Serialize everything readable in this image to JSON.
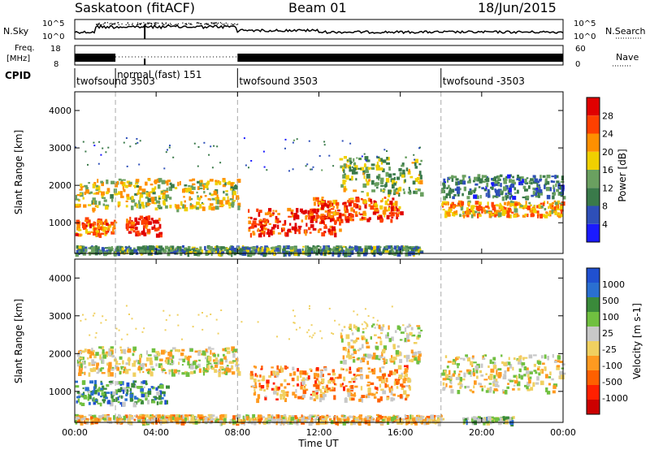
{
  "header": {
    "station": "Saskatoon (fitACF)",
    "beam": "Beam 01",
    "date": "18/Jun/2015"
  },
  "top_panels": {
    "nsky_label": "N.Sky",
    "nsky_ticks": [
      "10^5",
      "10^0"
    ],
    "nsearch_label": "N.Search",
    "nsearch_ticks": [
      "10^5",
      "10^0"
    ],
    "freq_label_1": "Freq.",
    "freq_label_2": "[MHz]",
    "freq_ticks": [
      "18",
      "8"
    ],
    "nave_label": "Nave",
    "nave_ticks": [
      "60",
      "0"
    ],
    "cpid_label": "CPID",
    "cpid_entries": [
      {
        "text": "twofsound 3503",
        "start_hour": 0.0
      },
      {
        "text": "normal (fast) 151",
        "start_hour": 2.0
      },
      {
        "text": "twofsound 3503",
        "start_hour": 8.0
      },
      {
        "text": "twofsound -3503",
        "start_hour": 18.0
      }
    ]
  },
  "colors": {
    "power_scale": [
      "#1a1aff",
      "#2e4fb8",
      "#3a7a4a",
      "#6aa060",
      "#f0d000",
      "#ff9000",
      "#ff4000",
      "#e00000"
    ],
    "velocity_scale": [
      "#2050d0",
      "#2a6fd0",
      "#3a8a3a",
      "#70c040",
      "#c8c8c8",
      "#f0d060",
      "#ff9a20",
      "#ff6000",
      "#ff2000",
      "#cc0000"
    ]
  },
  "chart_data": [
    {
      "type": "heatmap",
      "title": "Power",
      "ylabel": "Slant Range [km]",
      "xlabel": "",
      "ylim": [
        180,
        4500
      ],
      "xlim": [
        0,
        24
      ],
      "colorbar_label": "Power [dB]",
      "colorbar_ticks": [
        "4",
        "8",
        "12",
        "16",
        "20",
        "24",
        "28"
      ],
      "colorbar_range": [
        0,
        32
      ],
      "yticks": [
        "1000",
        "2000",
        "3000",
        "4000"
      ],
      "xticks": [
        "00:00",
        "04:00",
        "08:00",
        "12:00",
        "16:00",
        "20:00",
        "00:00"
      ],
      "scatter_regions": [
        {
          "t0": 0.0,
          "t1": 2.0,
          "r0": 700,
          "r1": 1150,
          "level": 0.75
        },
        {
          "t0": 0.0,
          "t1": 8.0,
          "r0": 1400,
          "r1": 2200,
          "level": 0.55
        },
        {
          "t0": 2.5,
          "t1": 4.2,
          "r0": 700,
          "r1": 1200,
          "level": 0.9
        },
        {
          "t0": 8.5,
          "t1": 13.0,
          "r0": 700,
          "r1": 1400,
          "level": 0.85
        },
        {
          "t0": 11.5,
          "t1": 16.0,
          "r0": 1100,
          "r1": 1700,
          "level": 0.8
        },
        {
          "t0": 13.0,
          "t1": 17.0,
          "r0": 1800,
          "r1": 2800,
          "level": 0.45
        },
        {
          "t0": 18.0,
          "t1": 24.0,
          "r0": 1200,
          "r1": 1600,
          "level": 0.65
        },
        {
          "t0": 18.0,
          "t1": 24.0,
          "r0": 1700,
          "r1": 2300,
          "level": 0.3
        },
        {
          "t0": 0.0,
          "t1": 17.0,
          "r0": 200,
          "r1": 400,
          "level": 0.35
        }
      ]
    },
    {
      "type": "heatmap",
      "title": "Velocity",
      "ylabel": "Slant Range [km]",
      "xlabel": "Time UT",
      "ylim": [
        180,
        4500
      ],
      "xlim": [
        0,
        24
      ],
      "colorbar_label": "Velocity [m s-1]",
      "colorbar_ticks": [
        "-1000",
        "-500",
        "-100",
        "-25",
        "25",
        "100",
        "500",
        "1000"
      ],
      "yticks": [
        "1000",
        "2000",
        "3000",
        "4000"
      ],
      "xticks": [
        "00:00",
        "04:00",
        "08:00",
        "12:00",
        "16:00",
        "20:00",
        "00:00"
      ],
      "scatter_regions": [
        {
          "t0": 0.0,
          "t1": 4.5,
          "r0": 700,
          "r1": 1300,
          "level": 0.25
        },
        {
          "t0": 0.0,
          "t1": 8.0,
          "r0": 1500,
          "r1": 2200,
          "level": 0.5
        },
        {
          "t0": 8.5,
          "t1": 16.5,
          "r0": 800,
          "r1": 1700,
          "level": 0.65
        },
        {
          "t0": 13.0,
          "t1": 17.0,
          "r0": 1800,
          "r1": 2800,
          "level": 0.5
        },
        {
          "t0": 18.0,
          "t1": 24.0,
          "r0": 1000,
          "r1": 2000,
          "level": 0.5
        },
        {
          "t0": 19.0,
          "t1": 21.5,
          "r0": 200,
          "r1": 350,
          "level": 0.35
        },
        {
          "t0": 0.0,
          "t1": 18.0,
          "r0": 200,
          "r1": 400,
          "level": 0.55
        }
      ]
    }
  ]
}
